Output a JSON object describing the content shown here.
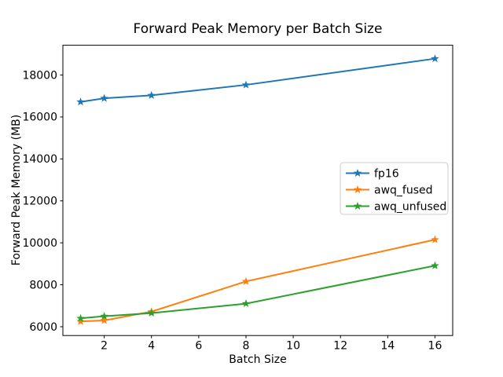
{
  "figure": {
    "background": "#ffffff",
    "text_color": "#000000"
  },
  "chart_data": {
    "type": "line",
    "title": "Forward Peak Memory per Batch Size",
    "xlabel": "Batch Size",
    "ylabel": "Forward Peak Memory (MB)",
    "x": [
      1,
      2,
      4,
      8,
      16
    ],
    "series": [
      {
        "name": "fp16",
        "color": "#1f77b4",
        "values": [
          16720,
          16890,
          17030,
          17530,
          18780
        ]
      },
      {
        "name": "awq_fused",
        "color": "#ff7f0e",
        "values": [
          6250,
          6300,
          6720,
          8160,
          10150
        ]
      },
      {
        "name": "awq_unfused",
        "color": "#2ca02c",
        "values": [
          6400,
          6500,
          6650,
          7100,
          8910
        ]
      }
    ],
    "marker": "star",
    "line_width": 2,
    "xlim": [
      0.25,
      16.75
    ],
    "ylim": [
      5580,
      19420
    ],
    "xticks": [
      2,
      4,
      6,
      8,
      10,
      12,
      14,
      16
    ],
    "yticks": [
      6000,
      8000,
      10000,
      12000,
      14000,
      16000,
      18000
    ],
    "grid": false,
    "legend": {
      "position": "center-right",
      "entries": [
        "fp16",
        "awq_fused",
        "awq_unfused"
      ],
      "border_color": "#cccccc",
      "background": "#ffffff"
    }
  }
}
